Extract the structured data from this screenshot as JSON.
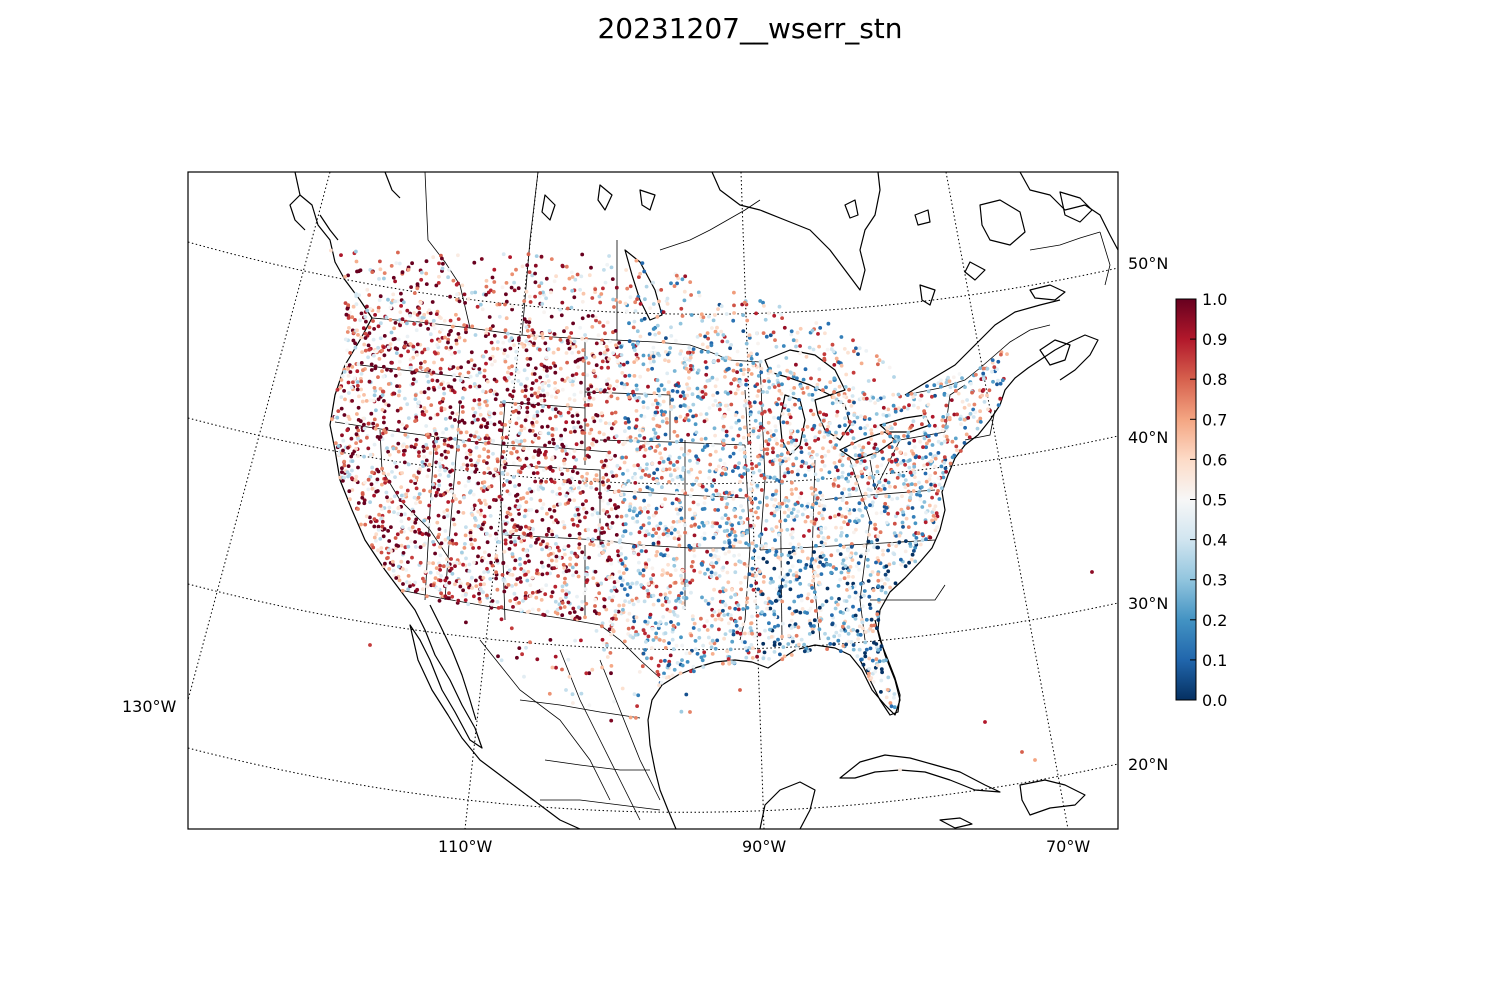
{
  "title": "20231207__wserr_stn",
  "map": {
    "lat_labels": [
      {
        "text": "50°N",
        "lat": 50
      },
      {
        "text": "40°N",
        "lat": 40
      },
      {
        "text": "30°N",
        "lat": 30
      },
      {
        "text": "20°N",
        "lat": 20
      }
    ],
    "lon_labels": [
      {
        "text": "130°W",
        "lon": -130
      },
      {
        "text": "110°W",
        "lon": -110
      },
      {
        "text": "90°W",
        "lon": -90
      },
      {
        "text": "70°W",
        "lon": -70
      }
    ],
    "colormap": "RdBu_r",
    "value_range": [
      0.0,
      1.0
    ]
  },
  "colorbar": {
    "ticks": [
      "0.0",
      "0.1",
      "0.2",
      "0.3",
      "0.4",
      "0.5",
      "0.6",
      "0.7",
      "0.8",
      "0.9",
      "1.0"
    ]
  }
}
